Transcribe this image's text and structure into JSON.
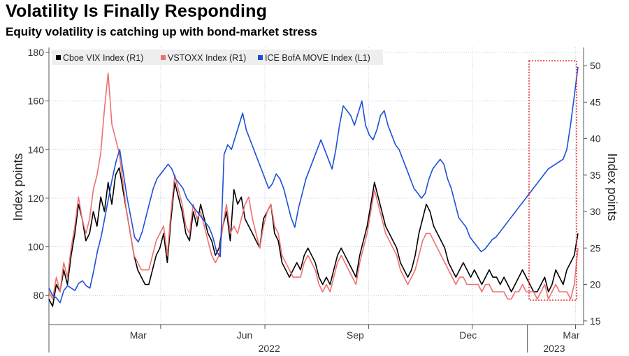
{
  "chart_data": {
    "type": "line",
    "title": "Volatility Is Finally Responding",
    "subtitle": "Equity volatility is catching up with bond-market stress",
    "ylabel_left": "Index points",
    "ylabel_right": "Index points",
    "ylim_left": [
      68,
      182
    ],
    "ylim_right": [
      14.5,
      52.5
    ],
    "yticks_left": [
      80,
      100,
      120,
      140,
      160,
      180
    ],
    "yticks_right": [
      15,
      20,
      25,
      30,
      35,
      40,
      45,
      50
    ],
    "xticks": [
      "Mar",
      "Jun",
      "Sep",
      "Dec",
      "Mar"
    ],
    "year_labels": [
      "2022",
      "2023"
    ],
    "highlight_box": "late Feb 2023 to mid Mar 2023",
    "legend": [
      "Cboe VIX Index (R1)",
      "VSTOXX Index (R1)",
      "ICE BofA MOVE Index  (L1)"
    ],
    "series": [
      {
        "name": "Cboe VIX Index (R1)",
        "axis": "right",
        "color": "#000000",
        "values": [
          18,
          17,
          20,
          19,
          22,
          20,
          24,
          27,
          31,
          29,
          26,
          27,
          30,
          28,
          32,
          30,
          34,
          31,
          35,
          36,
          33,
          30,
          27,
          24,
          22,
          21,
          20,
          20,
          22,
          24,
          25,
          27,
          23,
          29,
          34,
          32,
          30,
          27,
          26,
          30,
          28,
          31,
          29,
          27,
          26,
          24,
          25,
          28,
          30,
          26,
          33,
          31,
          32,
          29,
          28,
          27,
          26,
          25,
          29,
          30,
          31,
          27,
          26,
          23,
          22,
          21,
          22,
          23,
          22,
          24,
          25,
          24,
          23,
          21,
          20,
          21,
          20,
          22,
          24,
          25,
          24,
          23,
          22,
          21,
          24,
          26,
          28,
          31,
          34,
          32,
          30,
          28,
          27,
          26,
          25,
          23,
          22,
          21,
          22,
          24,
          27,
          29,
          31,
          30,
          28,
          27,
          26,
          25,
          23,
          22,
          21,
          22,
          23,
          22,
          21,
          22,
          21,
          20,
          21,
          22,
          21,
          21,
          20,
          21,
          20,
          19,
          20,
          21,
          22,
          21,
          20,
          19,
          19,
          20,
          21,
          19,
          20,
          22,
          21,
          20,
          22,
          23,
          24,
          27
        ]
      },
      {
        "name": "VSTOXX Index (R1)",
        "axis": "right",
        "color": "#f07070",
        "values": [
          19,
          18,
          21,
          19,
          23,
          21,
          25,
          28,
          32,
          29,
          27,
          29,
          33,
          35,
          38,
          44,
          49,
          42,
          40,
          38,
          34,
          30,
          27,
          24,
          23,
          22,
          22,
          22,
          24,
          26,
          27,
          28,
          24,
          30,
          35,
          33,
          31,
          28,
          27,
          31,
          29,
          30,
          28,
          26,
          24,
          23,
          24,
          28,
          31,
          27,
          28,
          27,
          29,
          31,
          32,
          29,
          27,
          25,
          28,
          30,
          31,
          28,
          27,
          24,
          23,
          22,
          21,
          21,
          21,
          23,
          24,
          23,
          22,
          20,
          19,
          20,
          19,
          21,
          23,
          24,
          23,
          22,
          21,
          20,
          23,
          25,
          27,
          30,
          33,
          31,
          29,
          27,
          26,
          25,
          24,
          22,
          21,
          20,
          21,
          22,
          24,
          26,
          27,
          27,
          26,
          25,
          24,
          23,
          22,
          21,
          20,
          21,
          21,
          20,
          20,
          20,
          20,
          19,
          20,
          20,
          19,
          19,
          19,
          19,
          18,
          18,
          19,
          19,
          20,
          19,
          19,
          19,
          18,
          19,
          20,
          18,
          19,
          20,
          19,
          19,
          19,
          18,
          20,
          25
        ]
      },
      {
        "name": "ICE BofA MOVE Index  (L1)",
        "axis": "left",
        "color": "#1e4fd8",
        "values": [
          83,
          80,
          79,
          77,
          82,
          84,
          83,
          82,
          85,
          86,
          84,
          83,
          90,
          98,
          104,
          112,
          120,
          128,
          135,
          140,
          130,
          120,
          112,
          104,
          102,
          106,
          112,
          118,
          124,
          128,
          130,
          132,
          134,
          132,
          128,
          126,
          124,
          120,
          118,
          116,
          114,
          112,
          110,
          108,
          104,
          98,
          96,
          138,
          142,
          140,
          145,
          150,
          155,
          148,
          144,
          140,
          136,
          132,
          128,
          124,
          126,
          130,
          128,
          124,
          118,
          112,
          108,
          116,
          122,
          128,
          132,
          136,
          140,
          144,
          140,
          136,
          132,
          140,
          150,
          158,
          156,
          154,
          150,
          155,
          160,
          150,
          146,
          144,
          148,
          154,
          156,
          150,
          146,
          142,
          140,
          136,
          132,
          128,
          124,
          122,
          120,
          122,
          128,
          132,
          134,
          136,
          134,
          128,
          124,
          118,
          112,
          110,
          108,
          104,
          102,
          100,
          98,
          99,
          101,
          103,
          104,
          106,
          108,
          110,
          112,
          114,
          116,
          118,
          120,
          122,
          124,
          126,
          128,
          130,
          132,
          133,
          134,
          135,
          136,
          140,
          150,
          162,
          174
        ]
      }
    ]
  }
}
